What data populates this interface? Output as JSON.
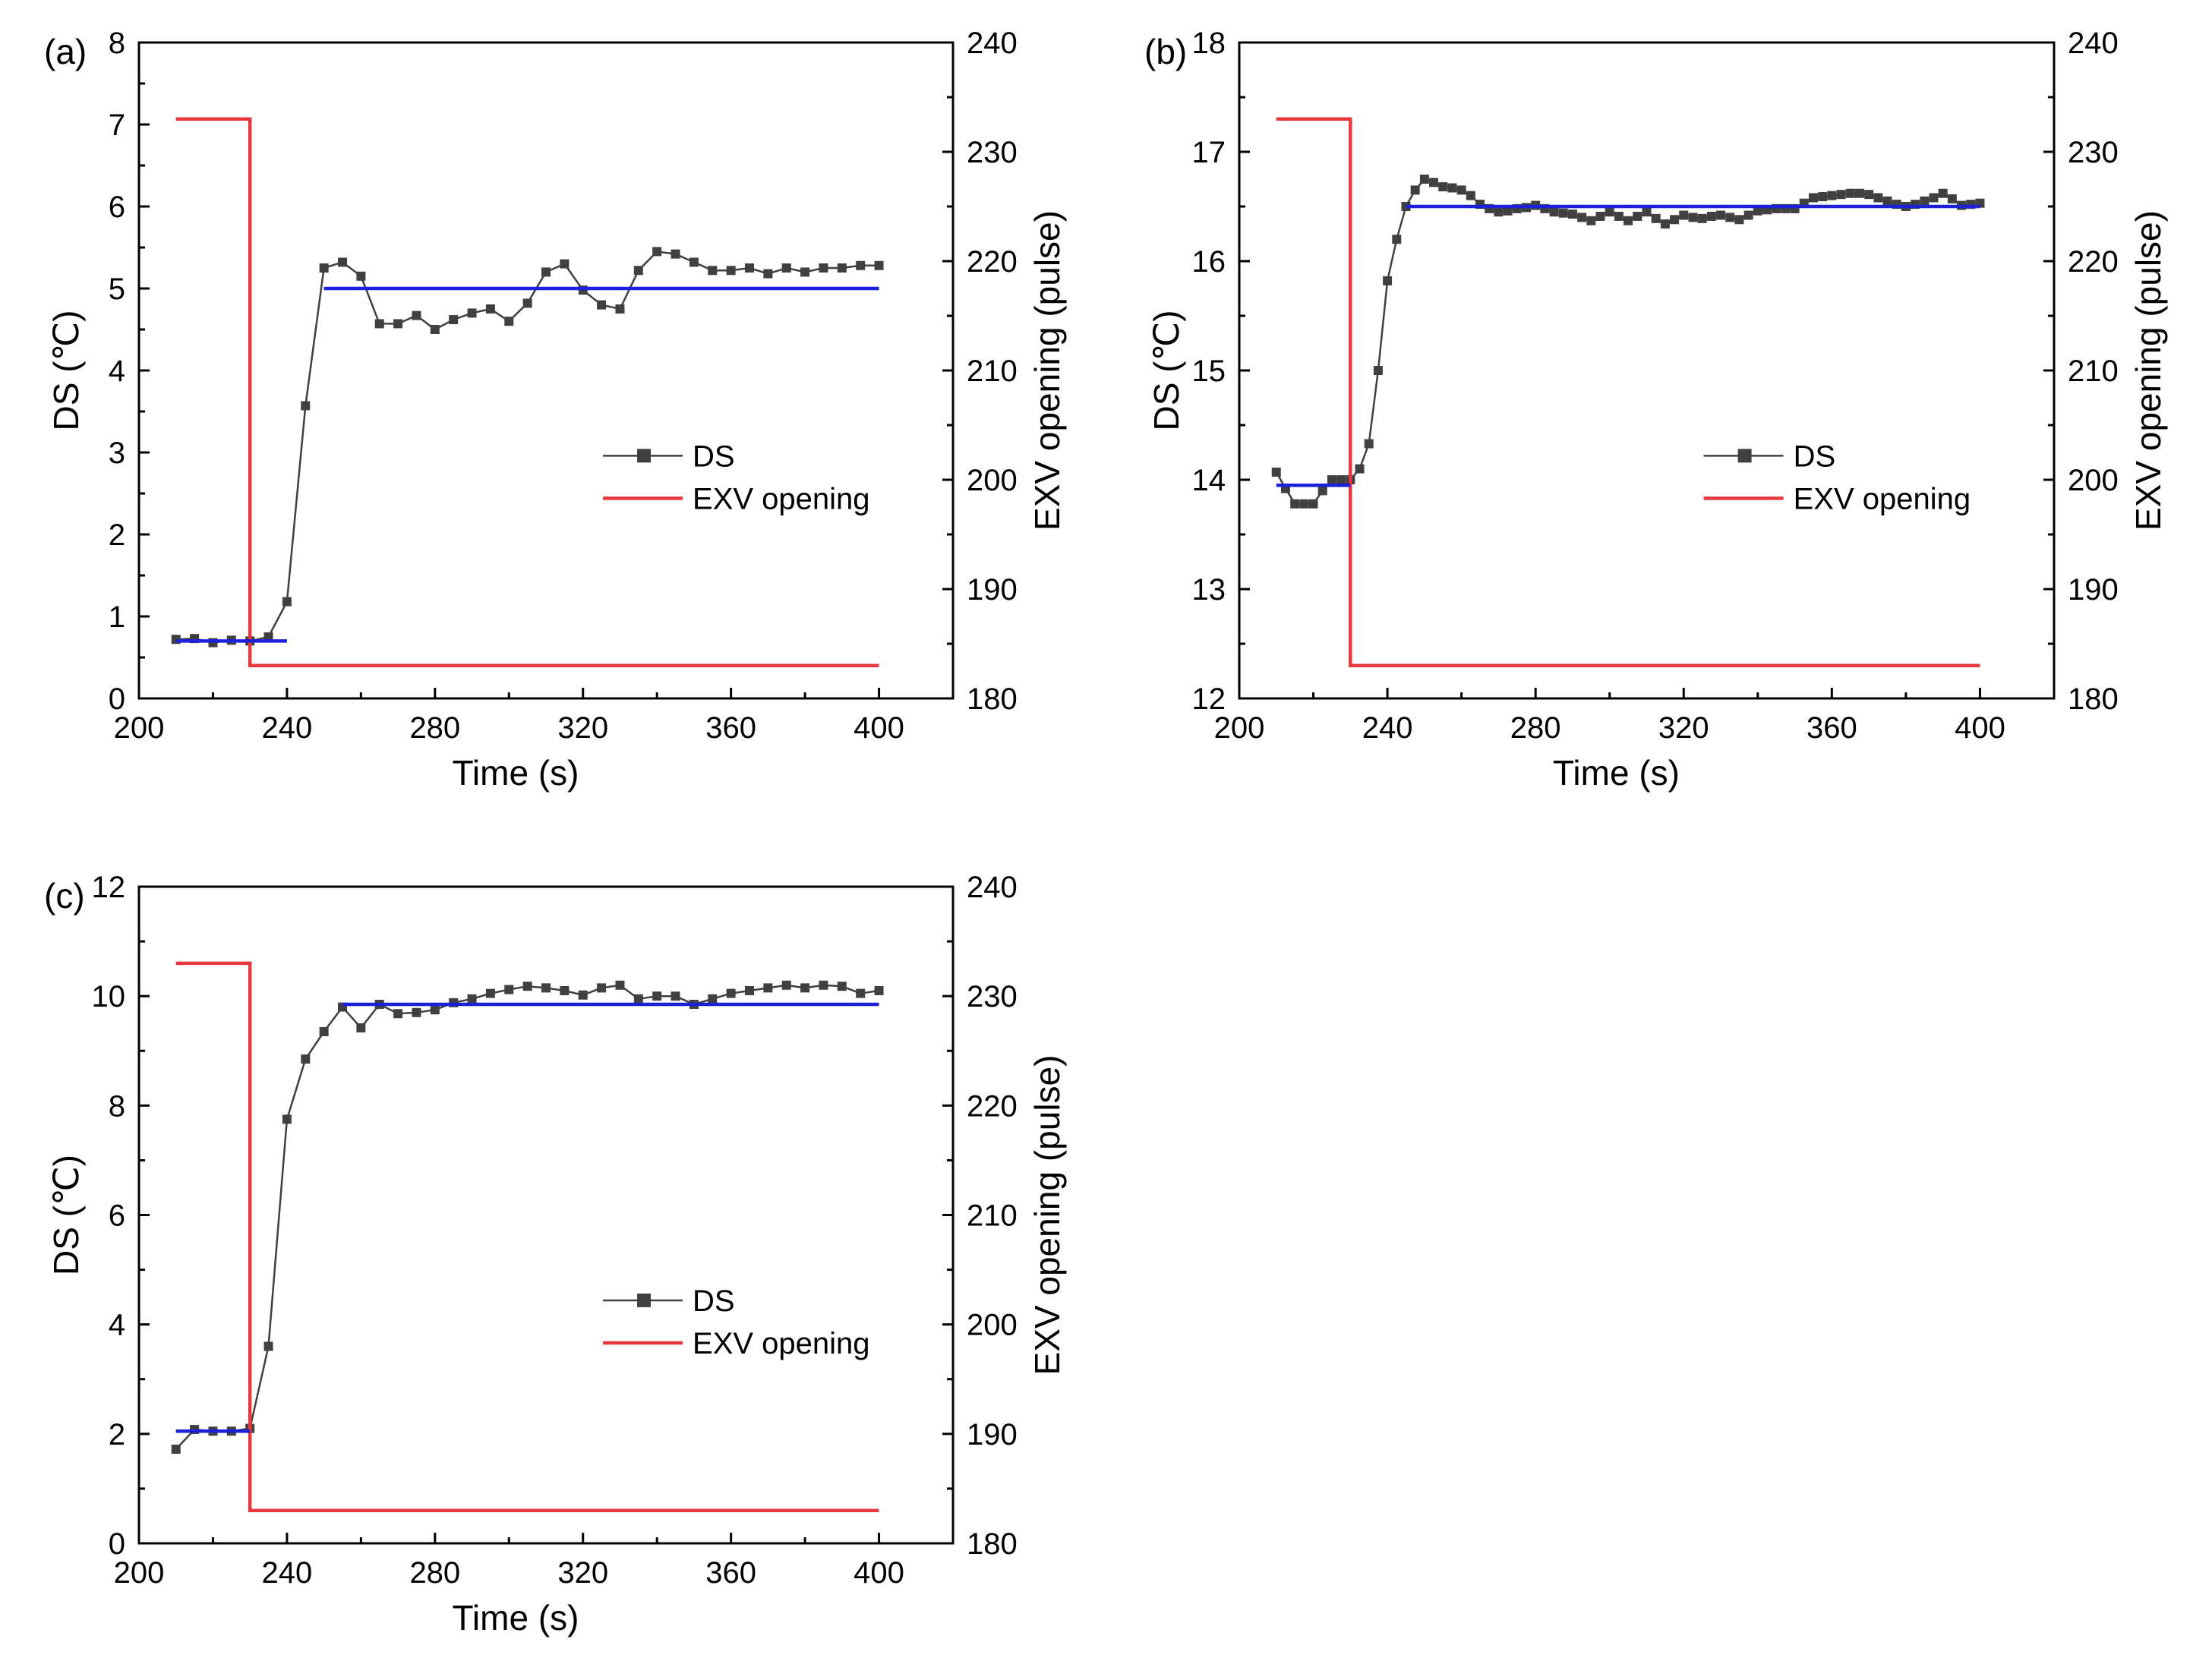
{
  "chart_data": [
    {
      "type": "line",
      "panel_label": "(a)",
      "xlabel": "Time (s)",
      "ylabel": "DS (℃)",
      "y2label": "EXV opening (pulse)",
      "xlim": [
        200,
        420
      ],
      "ylim": [
        0,
        8
      ],
      "y2lim": [
        180,
        240
      ],
      "xticks": [
        200,
        240,
        280,
        320,
        360,
        400
      ],
      "yticks": [
        0,
        1,
        2,
        3,
        4,
        5,
        6,
        7,
        8
      ],
      "y2ticks": [
        180,
        190,
        200,
        210,
        220,
        230,
        240
      ],
      "legend": {
        "position": "center-right",
        "entries": [
          "DS",
          "EXV opening"
        ]
      },
      "colors": {
        "ds": "#404040",
        "exv": "#e8383d",
        "target": "#1c20d8"
      },
      "series": [
        {
          "name": "DS",
          "axis": "left",
          "marker": "square",
          "x": [
            210,
            215,
            220,
            225,
            230,
            235,
            240,
            245,
            250,
            255,
            260,
            265,
            270,
            275,
            280,
            285,
            290,
            295,
            300,
            305,
            310,
            315,
            320,
            325,
            330,
            335,
            340,
            345,
            350,
            355,
            360,
            365,
            370,
            375,
            380,
            385,
            390,
            395,
            400
          ],
          "y": [
            0.72,
            0.73,
            0.68,
            0.71,
            0.7,
            0.75,
            1.18,
            3.57,
            5.25,
            5.32,
            5.15,
            4.57,
            4.57,
            4.67,
            4.5,
            4.62,
            4.7,
            4.75,
            4.6,
            4.82,
            5.2,
            5.3,
            4.98,
            4.8,
            4.75,
            5.22,
            5.45,
            5.42,
            5.32,
            5.22,
            5.22,
            5.25,
            5.18,
            5.25,
            5.2,
            5.25,
            5.25,
            5.28,
            5.28
          ]
        },
        {
          "name": "EXV opening",
          "axis": "right",
          "step": true,
          "x": [
            210,
            230,
            230,
            400
          ],
          "y": [
            233,
            233,
            183,
            183
          ]
        },
        {
          "name": "DS target (before)",
          "axis": "left",
          "x": [
            210,
            240
          ],
          "y": [
            0.7,
            0.7
          ]
        },
        {
          "name": "DS target (after)",
          "axis": "left",
          "x": [
            250,
            400
          ],
          "y": [
            5.0,
            5.0
          ]
        }
      ]
    },
    {
      "type": "line",
      "panel_label": "(b)",
      "xlabel": "Time (s)",
      "ylabel": "DS (℃)",
      "y2label": "EXV opening (pulse)",
      "xlim": [
        200,
        420
      ],
      "ylim": [
        12,
        18
      ],
      "y2lim": [
        180,
        240
      ],
      "xticks": [
        200,
        240,
        280,
        320,
        360,
        400
      ],
      "yticks": [
        12,
        13,
        14,
        15,
        16,
        17,
        18
      ],
      "y2ticks": [
        180,
        190,
        200,
        210,
        220,
        230,
        240
      ],
      "legend": {
        "position": "center-right",
        "entries": [
          "DS",
          "EXV opening"
        ]
      },
      "colors": {
        "ds": "#404040",
        "exv": "#e8383d",
        "target": "#1c20d8"
      },
      "series": [
        {
          "name": "DS",
          "axis": "left",
          "marker": "square",
          "x": [
            210,
            212.5,
            215,
            217.5,
            220,
            222.5,
            225,
            227.5,
            230,
            232.5,
            235,
            237.5,
            240,
            242.5,
            245,
            247.5,
            250,
            252.5,
            255,
            257.5,
            260,
            262.5,
            265,
            267.5,
            270,
            272.5,
            275,
            277.5,
            280,
            282.5,
            285,
            287.5,
            290,
            292.5,
            295,
            297.5,
            300,
            302.5,
            305,
            307.5,
            310,
            312.5,
            315,
            317.5,
            320,
            322.5,
            325,
            327.5,
            330,
            332.5,
            335,
            337.5,
            340,
            342.5,
            345,
            347.5,
            350,
            352.5,
            355,
            357.5,
            360,
            362.5,
            365,
            367.5,
            370,
            372.5,
            375,
            377.5,
            380,
            382.5,
            385,
            387.5,
            390,
            392.5,
            395,
            397.5,
            400
          ],
          "y": [
            14.07,
            13.92,
            13.78,
            13.78,
            13.78,
            13.9,
            14.0,
            14.0,
            14.0,
            14.1,
            14.33,
            15.0,
            15.82,
            16.2,
            16.5,
            16.65,
            16.75,
            16.72,
            16.68,
            16.67,
            16.65,
            16.6,
            16.52,
            16.48,
            16.45,
            16.46,
            16.48,
            16.49,
            16.51,
            16.48,
            16.45,
            16.44,
            16.43,
            16.4,
            16.37,
            16.41,
            16.45,
            16.41,
            16.37,
            16.41,
            16.45,
            16.39,
            16.34,
            16.38,
            16.42,
            16.4,
            16.39,
            16.41,
            16.42,
            16.4,
            16.38,
            16.42,
            16.46,
            16.47,
            16.48,
            16.48,
            16.48,
            16.53,
            16.58,
            16.59,
            16.6,
            16.61,
            16.62,
            16.62,
            16.61,
            16.58,
            16.55,
            16.52,
            16.5,
            16.52,
            16.55,
            16.58,
            16.62,
            16.57,
            16.51,
            16.52,
            16.53
          ]
        },
        {
          "name": "EXV opening",
          "axis": "right",
          "step": true,
          "x": [
            210,
            230,
            230,
            400
          ],
          "y": [
            233,
            233,
            183,
            183
          ]
        },
        {
          "name": "DS target (before)",
          "axis": "left",
          "x": [
            210,
            230
          ],
          "y": [
            13.95,
            13.95
          ]
        },
        {
          "name": "DS target (after)",
          "axis": "left",
          "x": [
            245,
            400
          ],
          "y": [
            16.5,
            16.5
          ]
        }
      ]
    },
    {
      "type": "line",
      "panel_label": "(c)",
      "xlabel": "Time (s)",
      "ylabel": "DS (℃)",
      "y2label": "EXV opening (pulse)",
      "xlim": [
        200,
        420
      ],
      "ylim": [
        0,
        12
      ],
      "y2lim": [
        180,
        240
      ],
      "xticks": [
        200,
        240,
        280,
        320,
        360,
        400
      ],
      "yticks": [
        0,
        2,
        4,
        6,
        8,
        10,
        12
      ],
      "y2ticks": [
        180,
        190,
        200,
        210,
        220,
        230,
        240
      ],
      "legend": {
        "position": "center-right",
        "entries": [
          "DS",
          "EXV opening"
        ]
      },
      "colors": {
        "ds": "#404040",
        "exv": "#e8383d",
        "target": "#1c20d8"
      },
      "series": [
        {
          "name": "DS",
          "axis": "left",
          "marker": "square",
          "x": [
            210,
            215,
            220,
            225,
            230,
            235,
            240,
            245,
            250,
            255,
            260,
            265,
            270,
            275,
            280,
            285,
            290,
            295,
            300,
            305,
            310,
            315,
            320,
            325,
            330,
            335,
            340,
            345,
            350,
            355,
            360,
            365,
            370,
            375,
            380,
            385,
            390,
            395,
            400
          ],
          "y": [
            1.72,
            2.08,
            2.05,
            2.05,
            2.1,
            3.6,
            7.75,
            8.85,
            9.35,
            9.8,
            9.42,
            9.85,
            9.68,
            9.7,
            9.75,
            9.88,
            9.95,
            10.05,
            10.12,
            10.18,
            10.15,
            10.1,
            10.02,
            10.15,
            10.2,
            9.95,
            10.0,
            10.0,
            9.85,
            9.95,
            10.05,
            10.1,
            10.15,
            10.2,
            10.15,
            10.2,
            10.18,
            10.05,
            10.1
          ]
        },
        {
          "name": "EXV opening",
          "axis": "right",
          "step": true,
          "x": [
            210,
            230,
            230,
            400
          ],
          "y": [
            233,
            233,
            183,
            183
          ]
        },
        {
          "name": "DS target (before)",
          "axis": "left",
          "x": [
            210,
            230
          ],
          "y": [
            2.05,
            2.05
          ]
        },
        {
          "name": "DS target (after)",
          "axis": "left",
          "x": [
            255,
            400
          ],
          "y": [
            9.85,
            9.85
          ]
        }
      ]
    }
  ]
}
